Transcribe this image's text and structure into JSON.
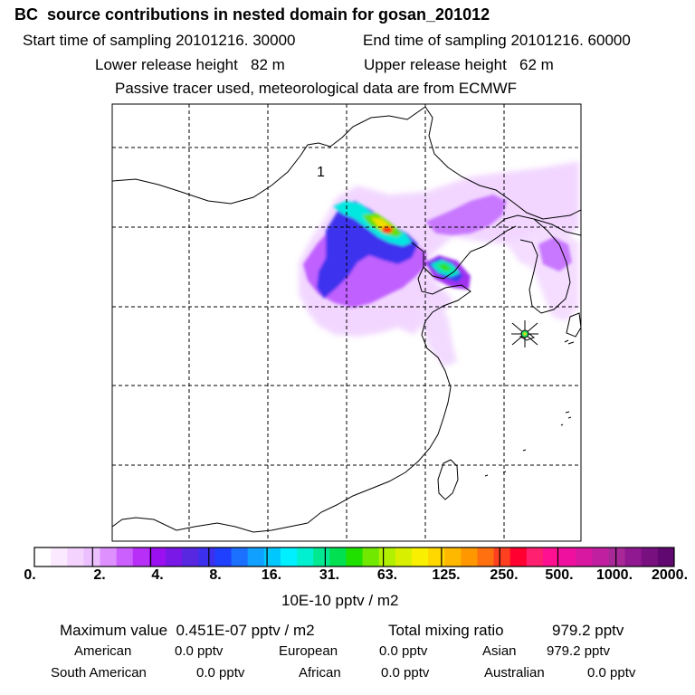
{
  "title": "BC  source contributions in nested domain for gosan_201012",
  "header": {
    "start_time_label": "Start time of sampling 20101216. 30000",
    "end_time_label": "End time of sampling 20101216. 60000",
    "lower_release_label": "Lower release height   82 m",
    "upper_release_label": "Upper release height   62 m",
    "tracer_label": "Passive tracer used, meteorological data are from ECMWF"
  },
  "map": {
    "release_point_label": "1",
    "receptor_marker": "star-marker",
    "colors": {
      "land_boundary": "#000000",
      "grid": "#000000",
      "plume_light": "#e8b8ff",
      "plume_mid": "#a020f0",
      "plume_blue": "#2040ff",
      "plume_cyan": "#00f0e0",
      "plume_green": "#40e000",
      "plume_yellow": "#f0e000",
      "plume_red": "#ff2000"
    }
  },
  "colorbar": {
    "ticks": [
      "0.",
      "2.",
      "4.",
      "8.",
      "16.",
      "31.",
      "63.",
      "125.",
      "250.",
      "500.",
      "1000.",
      "2000."
    ],
    "colors": [
      "#ffffff",
      "#fbeaff",
      "#f4d4ff",
      "#ecc0ff",
      "#de90ff",
      "#cc60ff",
      "#b830f8",
      "#9a10f0",
      "#7a18e8",
      "#5828e0",
      "#3c30ee",
      "#2040ff",
      "#1c70ff",
      "#10a0ff",
      "#00c8ff",
      "#00f0ff",
      "#00f0d0",
      "#00e890",
      "#00e050",
      "#20e000",
      "#70e800",
      "#b0f000",
      "#d8f000",
      "#f8f000",
      "#ffd800",
      "#ffb800",
      "#ff9800",
      "#ff7010",
      "#ff4020",
      "#ff0030",
      "#ff2070",
      "#ff1090",
      "#f010a0",
      "#d818a0",
      "#c020a0",
      "#a82898",
      "#901890",
      "#781080",
      "#600870"
    ]
  },
  "units_label": "10E-10 pptv / m2",
  "summary": {
    "max_label": "Maximum value  0.451E-07 pptv / m2",
    "total_label": "Total mixing ratio",
    "total_value": "979.2 pptv",
    "rows": [
      [
        {
          "name": "American",
          "value": "0.0 pptv"
        },
        {
          "name": "European",
          "value": "0.0 pptv"
        },
        {
          "name": "Asian",
          "value": "979.2 pptv"
        }
      ],
      [
        {
          "name": "South American",
          "value": "0.0 pptv"
        },
        {
          "name": "African",
          "value": "0.0 pptv"
        },
        {
          "name": "Australian",
          "value": "0.0 pptv"
        }
      ]
    ]
  }
}
